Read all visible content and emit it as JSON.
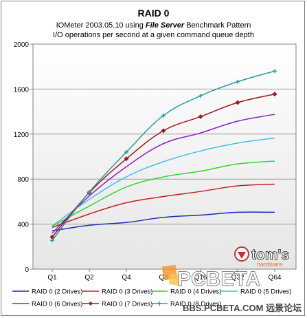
{
  "chart_data": {
    "type": "line",
    "title": "RAID 0",
    "subtitle_prefix": "IOMeter 2003.05.10 using ",
    "subtitle_emphasis": "File Server",
    "subtitle_suffix": "  Benchmark Pattern",
    "subtitle2": "I/O operations per second at a given command queue depth",
    "categories": [
      "Q1",
      "Q2",
      "Q4",
      "Q8",
      "Q16",
      "Q32",
      "Q64"
    ],
    "ylim": [
      0,
      2000
    ],
    "yticks": [
      0,
      400,
      800,
      1200,
      1600,
      2000
    ],
    "grid": true,
    "legend_position": "bottom",
    "series": [
      {
        "name": "RAID 0 (2 Drives)",
        "color": "#1f2bb5",
        "marker": "none",
        "values": [
          340,
          390,
          415,
          460,
          480,
          505,
          505
        ]
      },
      {
        "name": "RAID 0 (3 Drives)",
        "color": "#c42020",
        "marker": "none",
        "values": [
          370,
          490,
          590,
          645,
          690,
          740,
          755
        ]
      },
      {
        "name": "RAID 0 (4 Drives)",
        "color": "#35d435",
        "marker": "none",
        "values": [
          380,
          560,
          730,
          820,
          870,
          935,
          960
        ]
      },
      {
        "name": "RAID 0 (5 Drives)",
        "color": "#3fc0f0",
        "marker": "none",
        "values": [
          385,
          620,
          820,
          955,
          1050,
          1120,
          1165
        ]
      },
      {
        "name": "RAID 0 (6 Drives)",
        "color": "#8a1fc4",
        "marker": "none",
        "values": [
          320,
          650,
          910,
          1115,
          1210,
          1315,
          1375
        ]
      },
      {
        "name": "RAID 0 (7 Drives)",
        "color": "#a01818",
        "marker": "diamond",
        "values": [
          285,
          680,
          980,
          1230,
          1355,
          1480,
          1555
        ]
      },
      {
        "name": "RAID 0 (8 Drives)",
        "color": "#2a9aa0",
        "marker": "plus",
        "values": [
          255,
          685,
          1040,
          1365,
          1540,
          1665,
          1760
        ]
      }
    ]
  },
  "watermark": {
    "logo_text": "tom's",
    "logo_sub": "hardware",
    "brand": "PCBETA",
    "footer": "BBS.PCBETA.COM 远景论坛"
  }
}
